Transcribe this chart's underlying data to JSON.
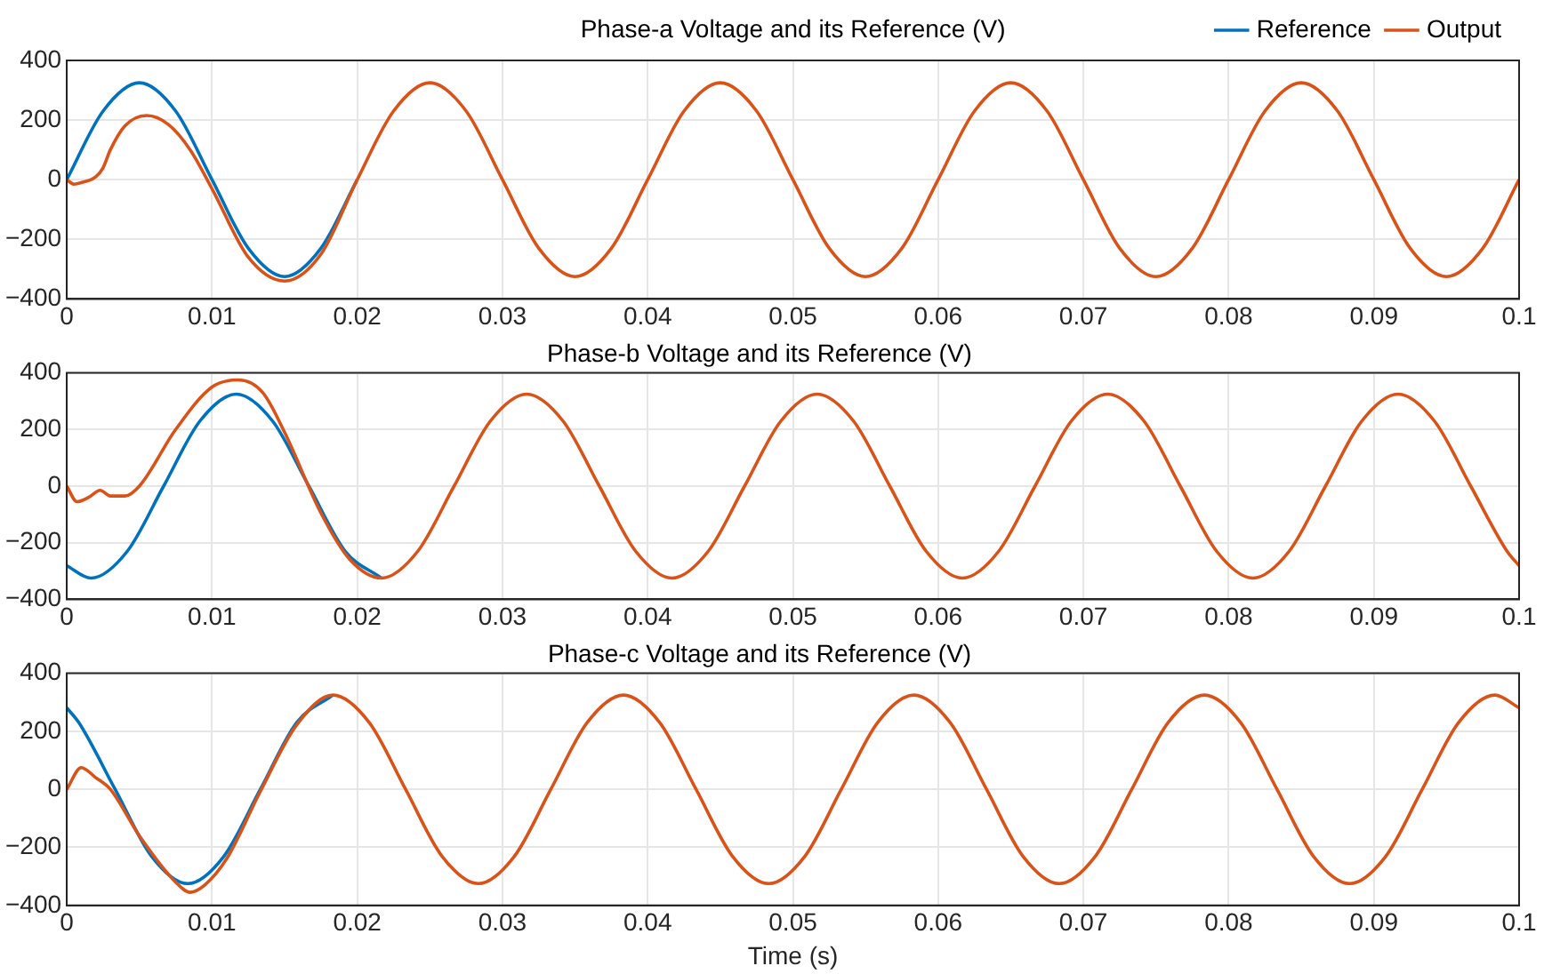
{
  "chart_data": [
    {
      "type": "line",
      "title": "Phase-a Voltage and its Reference (V)",
      "xlim": [
        0,
        0.1
      ],
      "xticks": [
        0,
        0.01,
        0.02,
        0.03,
        0.04,
        0.05,
        0.06,
        0.07,
        0.08,
        0.09,
        0.1
      ],
      "ylim": [
        -400,
        400
      ],
      "yticks": [
        -400,
        -200,
        0,
        200,
        400
      ],
      "grid": true,
      "legend": "top right",
      "marker": "none",
      "line_style": "solid",
      "series": [
        {
          "name": "Reference",
          "color": "#0072bd",
          "x": [
            0,
            0.0025,
            0.005,
            0.0075,
            0.01,
            0.0125,
            0.015,
            0.0175,
            0.02
          ],
          "values": [
            0,
            230,
            325,
            230,
            0,
            -230,
            -325,
            -230,
            0
          ]
        },
        {
          "name": "Output",
          "color": "#d95319",
          "x": [
            0,
            0.0005,
            0.001,
            0.002,
            0.0025,
            0.003,
            0.004,
            0.0055,
            0.007,
            0.0085,
            0.01,
            0.0125,
            0.015,
            0.0175,
            0.02,
            0.0225,
            0.025,
            0.0275,
            0.03,
            0.0325,
            0.035,
            0.0375,
            0.04,
            0.0425,
            0.045,
            0.0475,
            0.05,
            0.0525,
            0.055,
            0.0575,
            0.06,
            0.0625,
            0.065,
            0.0675,
            0.07,
            0.0725,
            0.075,
            0.0775,
            0.08,
            0.0825,
            0.085,
            0.0875,
            0.09,
            0.0925,
            0.095,
            0.0975,
            0.1
          ],
          "values": [
            0,
            -15,
            -10,
            10,
            40,
            100,
            180,
            215,
            185,
            100,
            -30,
            -260,
            -340,
            -250,
            0,
            230,
            325,
            230,
            0,
            -230,
            -325,
            -230,
            0,
            230,
            325,
            230,
            0,
            -230,
            -325,
            -230,
            0,
            230,
            325,
            230,
            0,
            -230,
            -325,
            -230,
            0,
            230,
            325,
            230,
            0,
            -230,
            -325,
            -230,
            0
          ]
        }
      ]
    },
    {
      "type": "line",
      "title": "Phase-b Voltage and its Reference (V)",
      "xlim": [
        0,
        0.1
      ],
      "xticks": [
        0,
        0.01,
        0.02,
        0.03,
        0.04,
        0.05,
        0.06,
        0.07,
        0.08,
        0.09,
        0.1
      ],
      "ylim": [
        -400,
        400
      ],
      "yticks": [
        -400,
        -200,
        0,
        200,
        400
      ],
      "grid": true,
      "marker": "none",
      "line_style": "solid",
      "series": [
        {
          "color": "#0072bd",
          "x": [
            0,
            0.00167,
            0.00417,
            0.00667,
            0.00917,
            0.01167,
            0.01417,
            0.01667,
            0.01917,
            0.02167
          ],
          "values": [
            -281,
            -325,
            -230,
            0,
            230,
            325,
            230,
            0,
            -230,
            -325
          ]
        },
        {
          "color": "#d95319",
          "x": [
            0,
            0.0007,
            0.0015,
            0.0023,
            0.003,
            0.004,
            0.005,
            0.0075,
            0.01,
            0.0118,
            0.0135,
            0.015,
            0.0175,
            0.0195,
            0.02167,
            0.02417,
            0.02667,
            0.02917,
            0.03167,
            0.03417,
            0.03667,
            0.03917,
            0.04167,
            0.04417,
            0.04667,
            0.04917,
            0.05167,
            0.05417,
            0.05667,
            0.05917,
            0.06167,
            0.06417,
            0.06667,
            0.06917,
            0.07167,
            0.07417,
            0.07667,
            0.07917,
            0.08167,
            0.08417,
            0.08667,
            0.08917,
            0.09167,
            0.09417,
            0.09667,
            0.09917,
            0.1
          ],
          "values": [
            0,
            -55,
            -40,
            -15,
            -35,
            -35,
            0,
            200,
            350,
            375,
            330,
            190,
            -95,
            -260,
            -325,
            -230,
            0,
            230,
            325,
            230,
            0,
            -230,
            -325,
            -230,
            0,
            230,
            325,
            230,
            0,
            -230,
            -325,
            -230,
            0,
            230,
            325,
            230,
            0,
            -230,
            -325,
            -230,
            0,
            230,
            325,
            230,
            0,
            -230,
            -281
          ]
        }
      ]
    },
    {
      "type": "line",
      "title": "Phase-c Voltage and its Reference (V)",
      "xlabel": "Time (s)",
      "xlim": [
        0,
        0.1
      ],
      "xticks": [
        0,
        0.01,
        0.02,
        0.03,
        0.04,
        0.05,
        0.06,
        0.07,
        0.08,
        0.09,
        0.1
      ],
      "ylim": [
        -400,
        400
      ],
      "yticks": [
        -400,
        -200,
        0,
        200,
        400
      ],
      "grid": true,
      "marker": "none",
      "line_style": "solid",
      "series": [
        {
          "color": "#0072bd",
          "x": [
            0,
            0.00083,
            0.00333,
            0.00583,
            0.00833,
            0.01083,
            0.01333,
            0.01583,
            0.01833
          ],
          "values": [
            281,
            230,
            0,
            -230,
            -325,
            -230,
            0,
            230,
            325
          ]
        },
        {
          "color": "#d95319",
          "x": [
            0,
            0.001,
            0.002,
            0.003,
            0.005,
            0.0075,
            0.0085,
            0.0095,
            0.011,
            0.0133,
            0.0158,
            0.01833,
            0.02083,
            0.02333,
            0.02583,
            0.02833,
            0.03083,
            0.03333,
            0.03583,
            0.03833,
            0.04083,
            0.04333,
            0.04583,
            0.04833,
            0.05083,
            0.05333,
            0.05583,
            0.05833,
            0.06083,
            0.06333,
            0.06583,
            0.06833,
            0.07083,
            0.07333,
            0.07583,
            0.07833,
            0.08083,
            0.08333,
            0.08583,
            0.08833,
            0.09083,
            0.09333,
            0.09583,
            0.09833,
            0.1
          ],
          "values": [
            0,
            75,
            40,
            0,
            -160,
            -320,
            -355,
            -330,
            -240,
            -10,
            220,
            325,
            230,
            0,
            -230,
            -325,
            -230,
            0,
            230,
            325,
            230,
            0,
            -230,
            -325,
            -230,
            0,
            230,
            325,
            230,
            0,
            -230,
            -325,
            -230,
            0,
            230,
            325,
            230,
            0,
            -230,
            -325,
            -230,
            0,
            230,
            325,
            281
          ]
        }
      ]
    }
  ]
}
